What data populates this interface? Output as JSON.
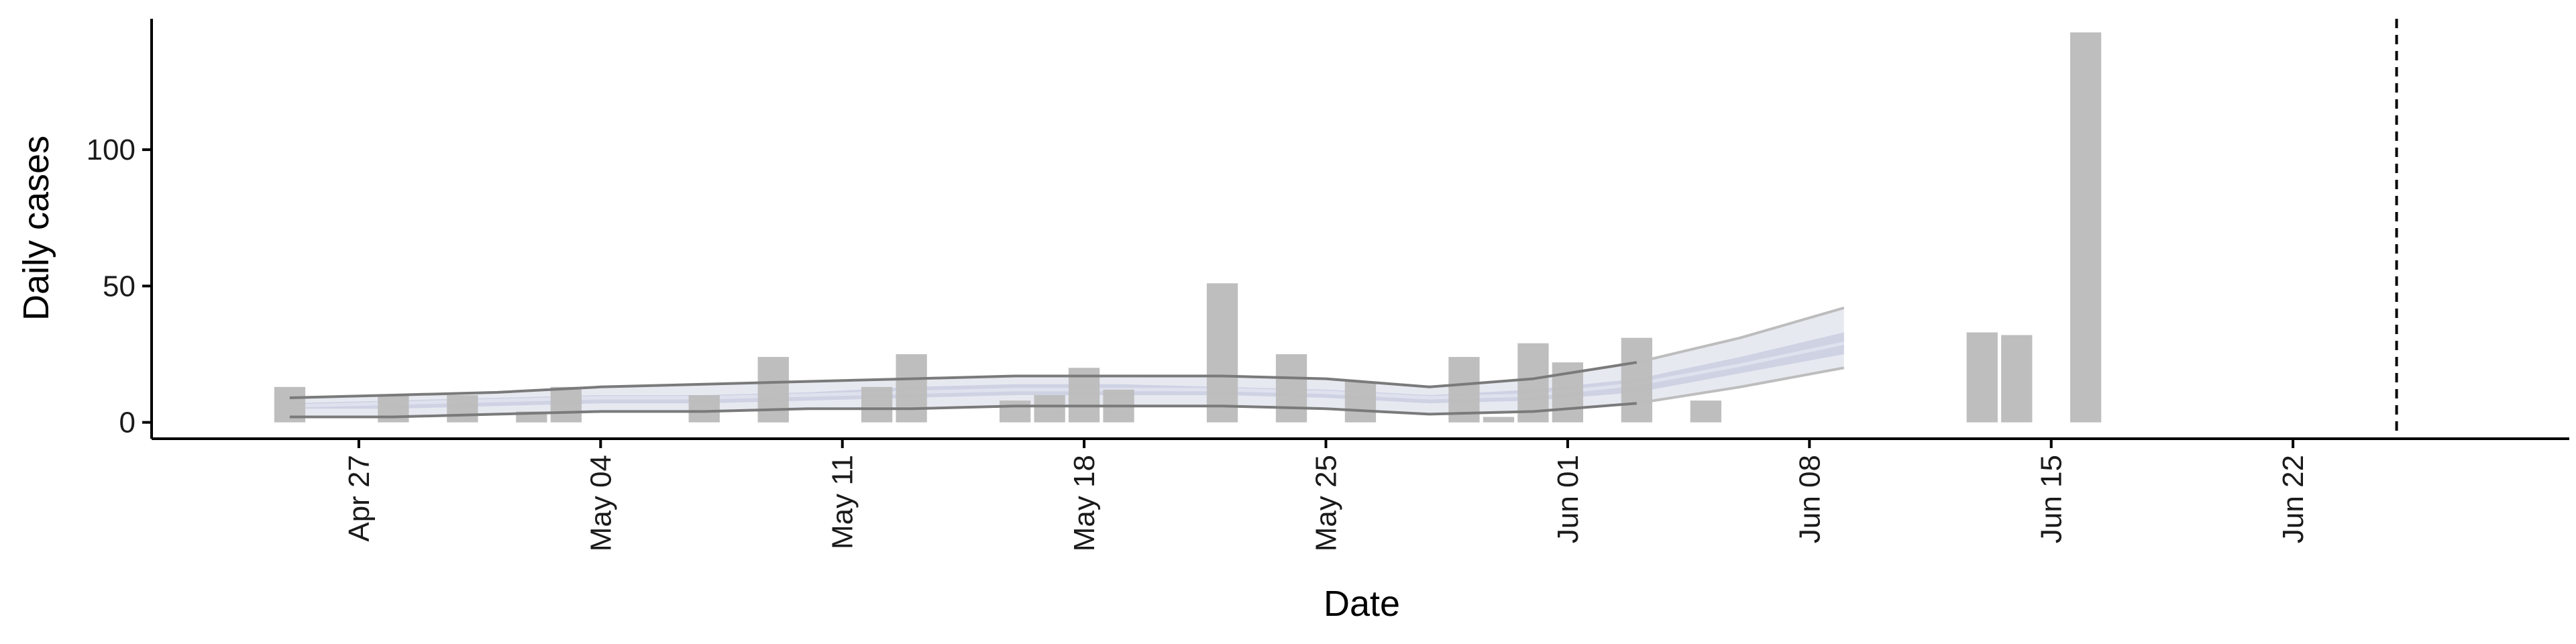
{
  "chart_data": {
    "type": "bar",
    "xlabel": "Date",
    "ylabel": "Daily cases",
    "x_is_date": true,
    "xlim": [
      "2020-04-21",
      "2020-06-30"
    ],
    "ylim": [
      -6,
      148
    ],
    "y_ticks": [
      0,
      50,
      100
    ],
    "x_ticks": [
      {
        "date": "2020-04-27",
        "label": "Apr 27"
      },
      {
        "date": "2020-05-04",
        "label": "May 04"
      },
      {
        "date": "2020-05-11",
        "label": "May 11"
      },
      {
        "date": "2020-05-18",
        "label": "May 18"
      },
      {
        "date": "2020-05-25",
        "label": "May 25"
      },
      {
        "date": "2020-06-01",
        "label": "Jun 01"
      },
      {
        "date": "2020-06-08",
        "label": "Jun 08"
      },
      {
        "date": "2020-06-15",
        "label": "Jun 15"
      },
      {
        "date": "2020-06-22",
        "label": "Jun 22"
      }
    ],
    "grid": false,
    "bars": {
      "color": "#bdbdbd",
      "points": [
        {
          "date": "2020-04-25",
          "value": 13
        },
        {
          "date": "2020-04-28",
          "value": 10
        },
        {
          "date": "2020-04-30",
          "value": 10
        },
        {
          "date": "2020-05-02",
          "value": 4
        },
        {
          "date": "2020-05-03",
          "value": 13
        },
        {
          "date": "2020-05-07",
          "value": 10
        },
        {
          "date": "2020-05-09",
          "value": 24
        },
        {
          "date": "2020-05-12",
          "value": 13
        },
        {
          "date": "2020-05-13",
          "value": 25
        },
        {
          "date": "2020-05-16",
          "value": 8
        },
        {
          "date": "2020-05-17",
          "value": 10
        },
        {
          "date": "2020-05-18",
          "value": 20
        },
        {
          "date": "2020-05-19",
          "value": 12
        },
        {
          "date": "2020-05-22",
          "value": 51
        },
        {
          "date": "2020-05-24",
          "value": 25
        },
        {
          "date": "2020-05-26",
          "value": 15
        },
        {
          "date": "2020-05-29",
          "value": 24
        },
        {
          "date": "2020-05-30",
          "value": 2
        },
        {
          "date": "2020-05-31",
          "value": 29
        },
        {
          "date": "2020-06-01",
          "value": 22
        },
        {
          "date": "2020-06-03",
          "value": 31
        },
        {
          "date": "2020-06-05",
          "value": 8
        },
        {
          "date": "2020-06-13",
          "value": 33
        },
        {
          "date": "2020-06-14",
          "value": 32
        },
        {
          "date": "2020-06-16",
          "value": 143
        }
      ]
    },
    "estimate": {
      "colors": {
        "outer_band": "#e7e9f1",
        "inner_band": "#c5cadd",
        "median": "#dfe2ee",
        "bound_line": "#7a7a7a",
        "bound_line_forecast": "#bdbdbd"
      },
      "dates": [
        "2020-04-25",
        "2020-04-28",
        "2020-05-01",
        "2020-05-04",
        "2020-05-07",
        "2020-05-10",
        "2020-05-13",
        "2020-05-16",
        "2020-05-19",
        "2020-05-22",
        "2020-05-25",
        "2020-05-28",
        "2020-05-31",
        "2020-06-03",
        "2020-06-06",
        "2020-06-09"
      ],
      "outer_lower": [
        2,
        2,
        3,
        4,
        4,
        5,
        5,
        6,
        6,
        6,
        5,
        3,
        4,
        7,
        13,
        20
      ],
      "inner_lower": [
        5,
        5,
        6,
        7,
        7,
        8,
        9,
        10,
        10,
        10,
        9,
        7,
        8,
        11,
        18,
        25
      ],
      "median": [
        6,
        7,
        8,
        9,
        9,
        10,
        11,
        12,
        12,
        12,
        11,
        9,
        10,
        14,
        21,
        29
      ],
      "inner_upper": [
        7,
        8,
        9,
        10,
        10,
        11,
        13,
        14,
        14,
        13,
        12,
        10,
        12,
        16,
        24,
        33
      ],
      "outer_upper": [
        9,
        10,
        11,
        13,
        14,
        15,
        16,
        17,
        17,
        17,
        16,
        13,
        16,
        22,
        31,
        42
      ],
      "forecast_from": "2020-06-03"
    },
    "reference_line": {
      "date": "2020-06-25",
      "style": "dashed",
      "color": "#000000"
    }
  }
}
